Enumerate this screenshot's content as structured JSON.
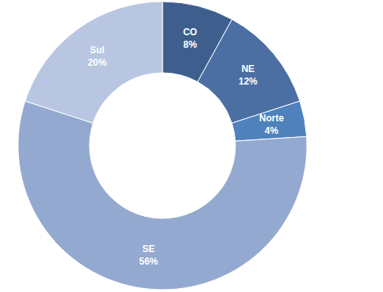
{
  "chart_data": {
    "type": "pie",
    "categories": [
      "CO",
      "NE",
      "Norte",
      "SE",
      "Sul"
    ],
    "values": [
      8,
      12,
      4,
      56,
      20
    ],
    "value_labels": [
      "8%",
      "12%",
      "4%",
      "56%",
      "20%"
    ],
    "colors": [
      "#3e5f8e",
      "#4b6fa3",
      "#4f81bd",
      "#94a9cf",
      "#b8c6e1"
    ],
    "data_labels": true
  }
}
